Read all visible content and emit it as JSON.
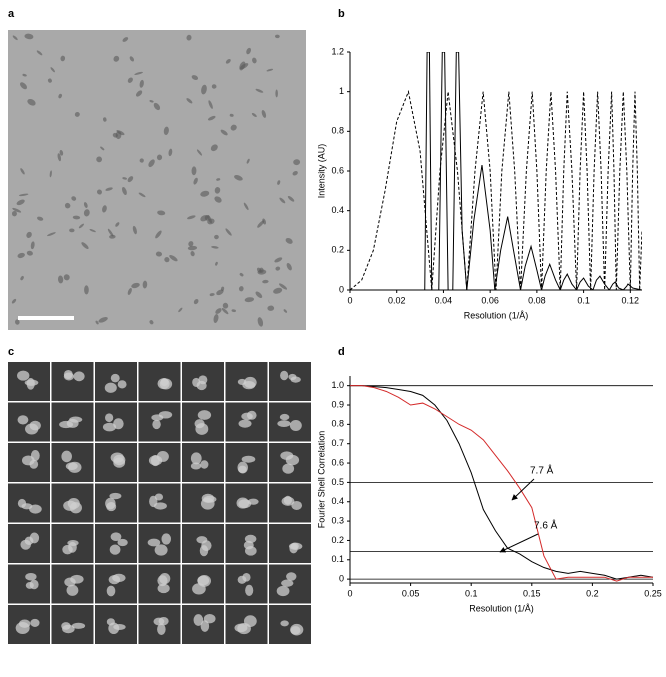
{
  "panel_labels": [
    "a",
    "b",
    "c",
    "d"
  ],
  "chart_data": [
    {
      "type": "line",
      "xlabel": "Resolution (1/Å)",
      "ylabel": "Intensity (AU)",
      "xlim": [
        0,
        0.125
      ],
      "ylim": [
        0,
        1.2
      ],
      "xticks": [
        0,
        0.02,
        0.04,
        0.06,
        0.08,
        0.1,
        0.12
      ],
      "yticks": [
        0,
        0.2,
        0.4,
        0.6,
        0.8,
        1,
        1.2
      ],
      "series": [
        {
          "color": "#000000",
          "dashed": true,
          "x": [
            0,
            0.005,
            0.01,
            0.015,
            0.02,
            0.025,
            0.03,
            0.035,
            0.0385,
            0.042,
            0.046,
            0.05,
            0.0535,
            0.057,
            0.06,
            0.0625,
            0.065,
            0.068,
            0.0705,
            0.073,
            0.0755,
            0.078,
            0.08,
            0.082,
            0.084,
            0.086,
            0.088,
            0.09,
            0.0915,
            0.093,
            0.095,
            0.097,
            0.0985,
            0.1,
            0.1015,
            0.103,
            0.1045,
            0.106,
            0.1075,
            0.109,
            0.1105,
            0.112,
            0.113,
            0.114,
            0.1155,
            0.117,
            0.1185,
            0.12,
            0.121,
            0.122,
            0.123,
            0.124,
            0.125
          ],
          "values": [
            0,
            0.05,
            0.2,
            0.5,
            0.85,
            1,
            0.7,
            0,
            0.6,
            1,
            0.6,
            0,
            0.6,
            1,
            0.6,
            0,
            0.6,
            1,
            0.6,
            0,
            0.6,
            1,
            0.6,
            0,
            0.6,
            1,
            0.6,
            0,
            0.6,
            1,
            0.6,
            0,
            0.6,
            1,
            0.6,
            0,
            0.6,
            1,
            0.6,
            0,
            0.6,
            1,
            0.6,
            0,
            0.6,
            1,
            0.6,
            0,
            0.6,
            1,
            0.6,
            0,
            0.3
          ]
        },
        {
          "color": "#000000",
          "dashed": false,
          "x": [
            0,
            0.032,
            0.033,
            0.034,
            0.035,
            0.038,
            0.0395,
            0.0405,
            0.042,
            0.044,
            0.0455,
            0.0465,
            0.048,
            0.05,
            0.053,
            0.0565,
            0.06,
            0.062,
            0.0645,
            0.0675,
            0.07,
            0.073,
            0.075,
            0.0775,
            0.08,
            0.082,
            0.0835,
            0.0855,
            0.088,
            0.09,
            0.0915,
            0.093,
            0.095,
            0.097,
            0.0985,
            0.1,
            0.102,
            0.104,
            0.1055,
            0.107,
            0.109,
            0.111,
            0.1125,
            0.1135,
            0.115,
            0.117,
            0.1185,
            0.119,
            0.121,
            0.125
          ],
          "values": [
            0,
            0,
            1.2,
            1.2,
            0,
            0,
            1.2,
            1.2,
            0,
            0,
            1.2,
            1.2,
            0.3,
            0,
            0.35,
            0.63,
            0.3,
            0,
            0.2,
            0.37,
            0.2,
            0,
            0.12,
            0.22,
            0.1,
            0,
            0.07,
            0.13,
            0.05,
            0,
            0.05,
            0.08,
            0.03,
            0,
            0.04,
            0.06,
            0.02,
            0,
            0.05,
            0.07,
            0.03,
            0,
            0.03,
            0.04,
            0.01,
            0,
            0.02,
            0.03,
            0.01,
            0
          ]
        }
      ]
    },
    {
      "type": "line",
      "xlabel": "Resolution (1/Å)",
      "ylabel": "Fourier Shell Correlation",
      "xlim": [
        0,
        0.25
      ],
      "ylim": [
        -0.02,
        1.05
      ],
      "xticks": [
        0,
        0.05,
        0.1,
        0.15,
        0.2,
        0.25
      ],
      "yticks": [
        0,
        0.1,
        0.2,
        0.3,
        0.4,
        0.5,
        0.6,
        0.7,
        0.8,
        0.9,
        {
          "value": 1,
          "label": "1.0"
        }
      ],
      "hlines": [
        1,
        0.5,
        0.143,
        0
      ],
      "annotations": [
        "7.7 Å",
        "7.6 Å"
      ],
      "series": [
        {
          "color": "#000000",
          "dashed": false,
          "x": [
            0,
            0.01,
            0.02,
            0.03,
            0.04,
            0.05,
            0.06,
            0.07,
            0.08,
            0.09,
            0.1,
            0.11,
            0.12,
            0.13,
            0.14,
            0.15,
            0.16,
            0.17,
            0.18,
            0.19,
            0.2,
            0.21,
            0.22,
            0.23,
            0.24,
            0.25
          ],
          "values": [
            1,
            1,
            0.995,
            0.99,
            0.98,
            0.97,
            0.95,
            0.9,
            0.82,
            0.7,
            0.55,
            0.36,
            0.25,
            0.16,
            0.13,
            0.09,
            0.06,
            0.04,
            0.03,
            0.04,
            0.03,
            0.02,
            0,
            0.01,
            0.02,
            0.01
          ]
        },
        {
          "color": "#d42a2a",
          "dashed": false,
          "x": [
            0,
            0.01,
            0.02,
            0.03,
            0.04,
            0.05,
            0.06,
            0.07,
            0.08,
            0.09,
            0.1,
            0.11,
            0.12,
            0.13,
            0.14,
            0.15,
            0.16,
            0.17,
            0.18,
            0.19,
            0.2,
            0.21,
            0.22,
            0.23,
            0.24,
            0.25
          ],
          "values": [
            1,
            1,
            0.99,
            0.97,
            0.94,
            0.9,
            0.91,
            0.88,
            0.84,
            0.8,
            0.77,
            0.72,
            0.64,
            0.56,
            0.47,
            0.37,
            0.12,
            0,
            0.01,
            0.01,
            0.01,
            0.01,
            -0.01,
            0.01,
            0.01,
            0.01
          ]
        }
      ]
    }
  ]
}
